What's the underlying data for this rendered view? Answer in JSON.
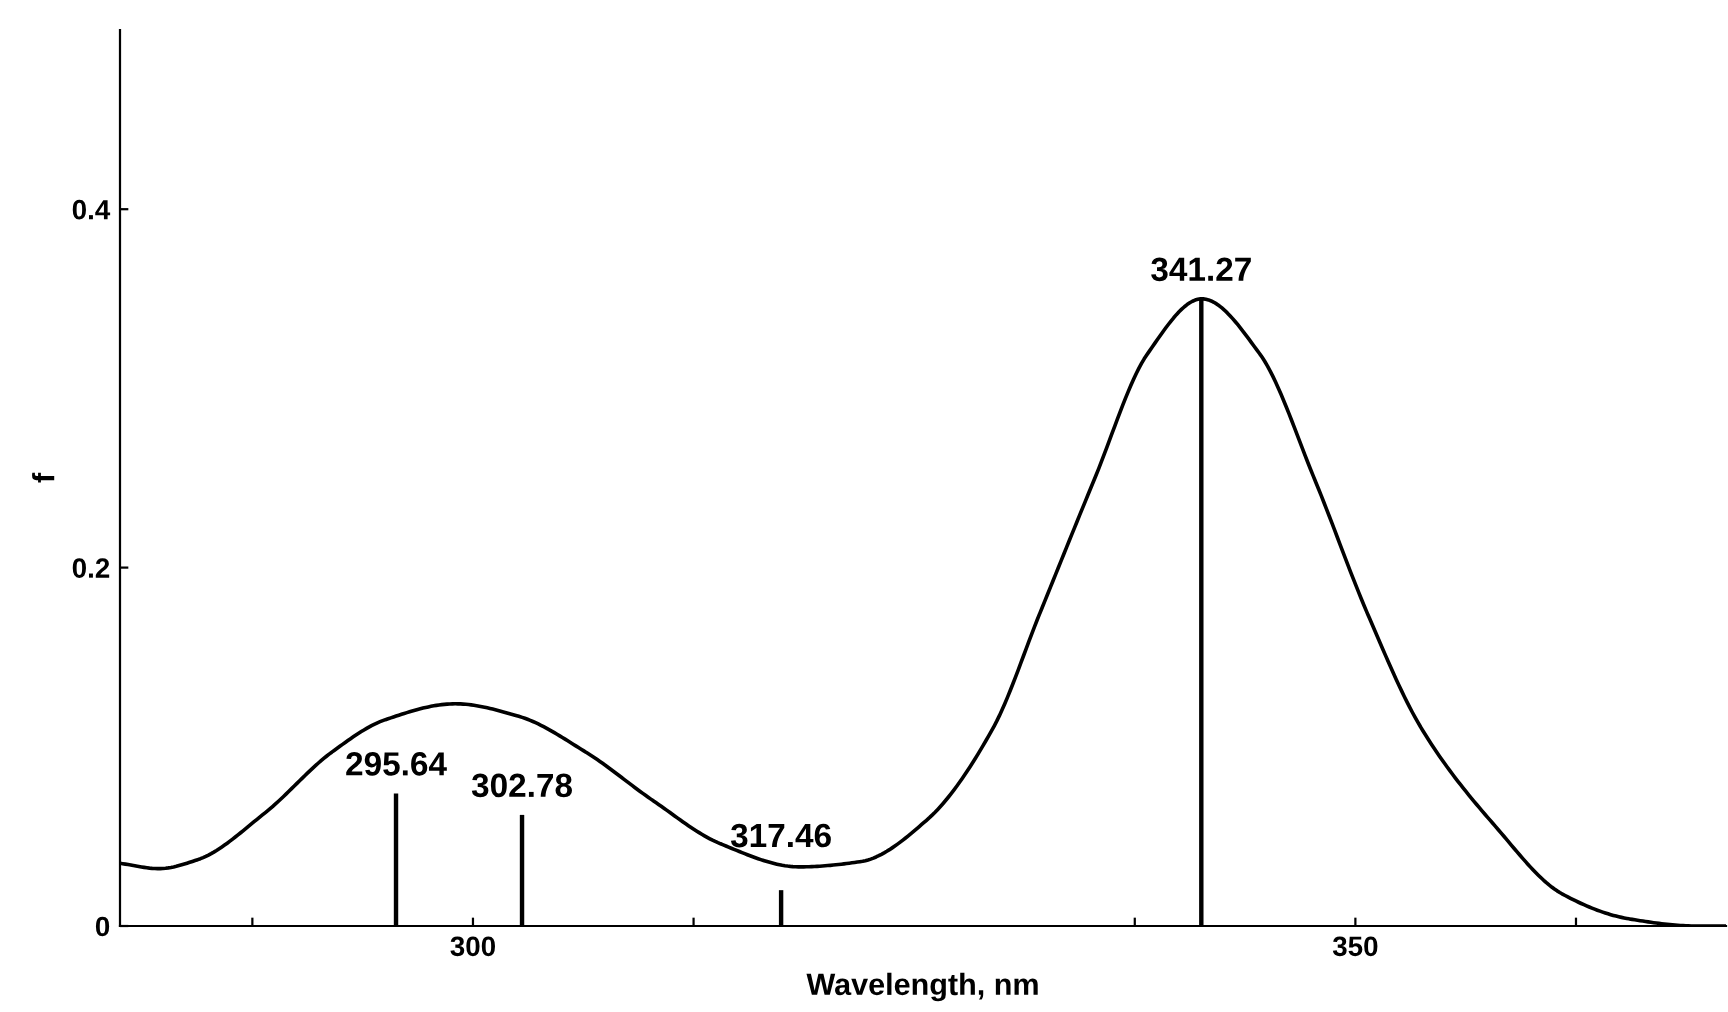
{
  "chart_data": {
    "type": "line",
    "xlabel": "Wavelength, nm",
    "ylabel": "f",
    "xlim": [
      280,
      371
    ],
    "ylim": [
      0,
      0.5
    ],
    "xticks": [
      {
        "value": 287.5,
        "label": null
      },
      300,
      {
        "value": 312.5,
        "label": null
      },
      {
        "value": 337.5,
        "label": null
      },
      350,
      {
        "value": 362.5,
        "label": null
      }
    ],
    "yticks": [
      0,
      0.2,
      0.4
    ],
    "grid": false,
    "legend": false,
    "marker": "none",
    "line_style": "solid",
    "series": [
      {
        "color": "#000000",
        "x": [
          280.0,
          282.2,
          284.4,
          288.2,
          292.0,
          295.0,
          299.0,
          302.6,
          306.4,
          310.2,
          314.0,
          318.5,
          322.0,
          325.7,
          329.5,
          332.1,
          335.2,
          338.2,
          341.3,
          344.6,
          347.7,
          350.7,
          353.7,
          357.9,
          361.7,
          365.5,
          369.3,
          371.0
        ],
        "values": [
          0.035,
          0.032,
          0.037,
          0.063,
          0.097,
          0.115,
          0.124,
          0.117,
          0.097,
          0.07,
          0.046,
          0.033,
          0.036,
          0.059,
          0.111,
          0.174,
          0.249,
          0.319,
          0.35,
          0.319,
          0.249,
          0.174,
          0.111,
          0.056,
          0.018,
          0.004,
          0.0,
          0.0
        ]
      },
      {
        "type": "bar",
        "color": "#000000",
        "x": [
          295.64,
          302.78,
          317.46,
          341.27
        ],
        "values": [
          0.074,
          0.062,
          0.02,
          0.35
        ]
      }
    ],
    "annotations": [
      {
        "text": "295.64",
        "x": 295.64,
        "y": 0.074
      },
      {
        "text": "302.78",
        "x": 302.78,
        "y": 0.062
      },
      {
        "text": "317.46",
        "x": 317.46,
        "y": 0.02
      },
      {
        "text": "341.27",
        "x": 341.27,
        "y": 0.35
      }
    ]
  }
}
